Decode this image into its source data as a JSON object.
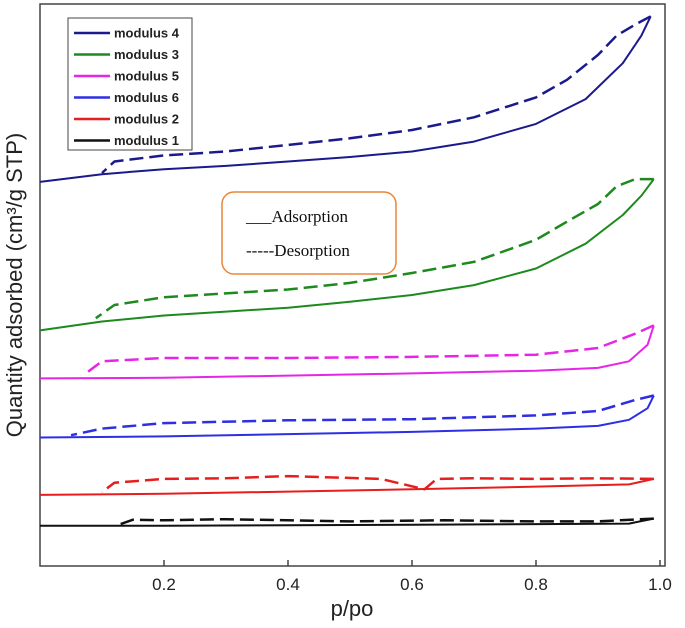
{
  "chart_data": {
    "type": "line",
    "xlabel": "p/po",
    "ylabel": "Quantity adsorbed (cm³/g STP)",
    "xlim": [
      0.0,
      1.0
    ],
    "ylim": [
      0.0,
      1.0
    ],
    "x_ticks": [
      "0.2",
      "0.4",
      "0.6",
      "0.8",
      "1.0"
    ],
    "x_tick_values": [
      0.2,
      0.4,
      0.6,
      0.8,
      1.0
    ],
    "y_ticks_shown": false,
    "grid": false,
    "legend_position": "top-left",
    "annotation": {
      "adsorption_label": "___Adsorption",
      "desorption_label": "-----Desorption",
      "border_color": "#e8873a"
    },
    "series": [
      {
        "name": "modulus 4",
        "color": "#1a1a8c",
        "adsorption": [
          [
            0.0,
            0.685
          ],
          [
            0.1,
            0.699
          ],
          [
            0.2,
            0.708
          ],
          [
            0.3,
            0.714
          ],
          [
            0.4,
            0.722
          ],
          [
            0.5,
            0.73
          ],
          [
            0.6,
            0.74
          ],
          [
            0.7,
            0.758
          ],
          [
            0.8,
            0.79
          ],
          [
            0.88,
            0.835
          ],
          [
            0.94,
            0.9
          ],
          [
            0.97,
            0.95
          ],
          [
            0.985,
            0.985
          ]
        ],
        "desorption": [
          [
            0.985,
            0.985
          ],
          [
            0.96,
            0.97
          ],
          [
            0.93,
            0.95
          ],
          [
            0.9,
            0.915
          ],
          [
            0.85,
            0.87
          ],
          [
            0.8,
            0.838
          ],
          [
            0.7,
            0.802
          ],
          [
            0.6,
            0.779
          ],
          [
            0.5,
            0.764
          ],
          [
            0.4,
            0.752
          ],
          [
            0.3,
            0.74
          ],
          [
            0.2,
            0.733
          ],
          [
            0.12,
            0.722
          ],
          [
            0.1,
            0.701
          ]
        ]
      },
      {
        "name": "modulus 3",
        "color": "#1e8a1e",
        "adsorption": [
          [
            0.0,
            0.416
          ],
          [
            0.1,
            0.432
          ],
          [
            0.2,
            0.443
          ],
          [
            0.3,
            0.45
          ],
          [
            0.4,
            0.457
          ],
          [
            0.5,
            0.468
          ],
          [
            0.6,
            0.48
          ],
          [
            0.7,
            0.498
          ],
          [
            0.8,
            0.528
          ],
          [
            0.88,
            0.573
          ],
          [
            0.94,
            0.625
          ],
          [
            0.97,
            0.66
          ],
          [
            0.99,
            0.69
          ]
        ],
        "desorption": [
          [
            0.99,
            0.69
          ],
          [
            0.96,
            0.69
          ],
          [
            0.93,
            0.677
          ],
          [
            0.9,
            0.645
          ],
          [
            0.85,
            0.613
          ],
          [
            0.8,
            0.58
          ],
          [
            0.7,
            0.54
          ],
          [
            0.6,
            0.52
          ],
          [
            0.5,
            0.502
          ],
          [
            0.4,
            0.49
          ],
          [
            0.3,
            0.483
          ],
          [
            0.2,
            0.476
          ],
          [
            0.12,
            0.462
          ],
          [
            0.09,
            0.438
          ]
        ]
      },
      {
        "name": "modulus 5",
        "color": "#e626e6",
        "adsorption": [
          [
            0.0,
            0.329
          ],
          [
            0.2,
            0.33
          ],
          [
            0.4,
            0.334
          ],
          [
            0.6,
            0.338
          ],
          [
            0.8,
            0.343
          ],
          [
            0.9,
            0.348
          ],
          [
            0.95,
            0.36
          ],
          [
            0.98,
            0.39
          ],
          [
            0.99,
            0.425
          ]
        ],
        "desorption": [
          [
            0.99,
            0.425
          ],
          [
            0.96,
            0.41
          ],
          [
            0.9,
            0.384
          ],
          [
            0.8,
            0.372
          ],
          [
            0.6,
            0.368
          ],
          [
            0.4,
            0.366
          ],
          [
            0.2,
            0.366
          ],
          [
            0.1,
            0.36
          ],
          [
            0.07,
            0.335
          ]
        ]
      },
      {
        "name": "modulus 6",
        "color": "#2e2ee6",
        "adsorption": [
          [
            0.0,
            0.222
          ],
          [
            0.2,
            0.224
          ],
          [
            0.4,
            0.228
          ],
          [
            0.6,
            0.232
          ],
          [
            0.8,
            0.238
          ],
          [
            0.9,
            0.243
          ],
          [
            0.95,
            0.254
          ],
          [
            0.98,
            0.275
          ],
          [
            0.99,
            0.298
          ]
        ],
        "desorption": [
          [
            0.99,
            0.298
          ],
          [
            0.96,
            0.29
          ],
          [
            0.9,
            0.27
          ],
          [
            0.8,
            0.262
          ],
          [
            0.6,
            0.255
          ],
          [
            0.4,
            0.253
          ],
          [
            0.2,
            0.248
          ],
          [
            0.1,
            0.238
          ],
          [
            0.05,
            0.226
          ]
        ]
      },
      {
        "name": "modulus 2",
        "color": "#e61e1e",
        "adsorption": [
          [
            0.0,
            0.118
          ],
          [
            0.2,
            0.12
          ],
          [
            0.4,
            0.124
          ],
          [
            0.6,
            0.128
          ],
          [
            0.8,
            0.133
          ],
          [
            0.95,
            0.137
          ],
          [
            0.99,
            0.147
          ]
        ],
        "desorption": [
          [
            0.99,
            0.147
          ],
          [
            0.9,
            0.148
          ],
          [
            0.8,
            0.147
          ],
          [
            0.7,
            0.148
          ],
          [
            0.64,
            0.147
          ],
          [
            0.62,
            0.128
          ],
          [
            0.55,
            0.147
          ],
          [
            0.4,
            0.152
          ],
          [
            0.3,
            0.148
          ],
          [
            0.2,
            0.147
          ],
          [
            0.12,
            0.14
          ],
          [
            0.1,
            0.123
          ]
        ]
      },
      {
        "name": "modulus 1",
        "color": "#111111",
        "adsorption": [
          [
            0.0,
            0.062
          ],
          [
            0.2,
            0.062
          ],
          [
            0.4,
            0.063
          ],
          [
            0.6,
            0.064
          ],
          [
            0.8,
            0.065
          ],
          [
            0.95,
            0.066
          ],
          [
            0.99,
            0.075
          ]
        ],
        "desorption": [
          [
            0.99,
            0.075
          ],
          [
            0.9,
            0.07
          ],
          [
            0.8,
            0.07
          ],
          [
            0.65,
            0.072
          ],
          [
            0.5,
            0.07
          ],
          [
            0.3,
            0.074
          ],
          [
            0.2,
            0.072
          ],
          [
            0.15,
            0.073
          ],
          [
            0.13,
            0.065
          ]
        ]
      }
    ]
  }
}
